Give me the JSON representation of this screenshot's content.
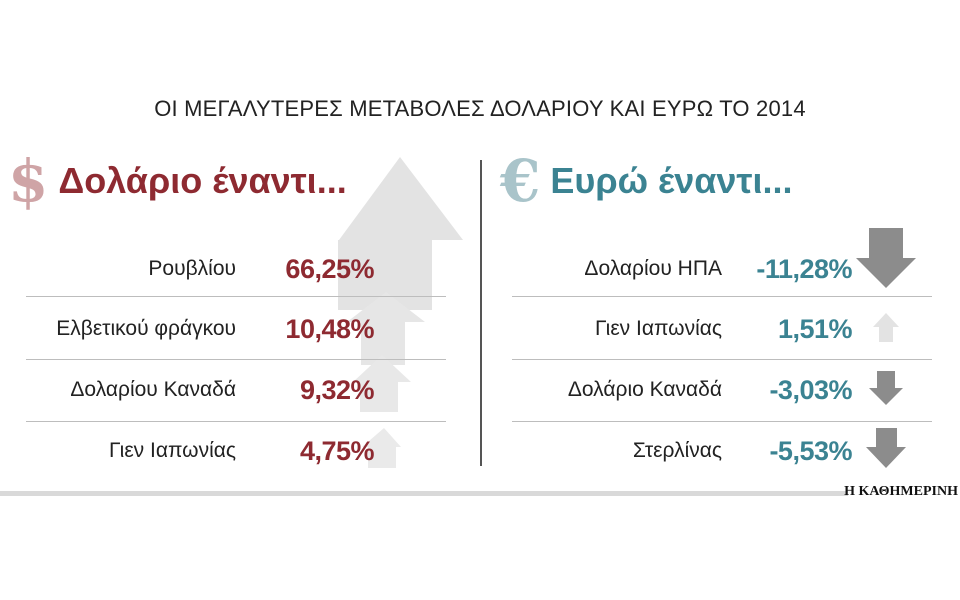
{
  "title": "ΟΙ ΜΕΓΑΛΥΤΕΡΕΣ ΜΕΤΑΒΟΛΕΣ ΔΟΛΑΡΙΟΥ ΚΑΙ ΕΥΡΩ ΤΟ 2014",
  "dollar": {
    "symbol": "$",
    "heading": "Δολάριο έναντι...",
    "rows": [
      {
        "name": "Ρουβλίου",
        "value": "66,25%",
        "direction": "up"
      },
      {
        "name": "Ελβετικού φράγκου",
        "value": "10,48%",
        "direction": "up"
      },
      {
        "name": "Δολαρίου Καναδά",
        "value": "9,32%",
        "direction": "up"
      },
      {
        "name": "Γιεν Ιαπωνίας",
        "value": "4,75%",
        "direction": "up"
      }
    ]
  },
  "euro": {
    "symbol": "€",
    "heading": "Ευρώ έναντι...",
    "rows": [
      {
        "name": "Δολαρίου ΗΠΑ",
        "value": "-11,28%",
        "direction": "down"
      },
      {
        "name": "Γιεν Ιαπωνίας",
        "value": "1,51%",
        "direction": "up"
      },
      {
        "name": "Δολάριο Καναδά",
        "value": "-3,03%",
        "direction": "down"
      },
      {
        "name": "Στερλίνας",
        "value": "-5,53%",
        "direction": "down"
      }
    ]
  },
  "source": "Η ΚΑΘΗΜΕΡΙΝΗ",
  "colors": {
    "dollar_accent": "#8e2a31",
    "dollar_symbol": "#cfa4a6",
    "euro_accent": "#3b8392",
    "euro_symbol": "#a9c4ca",
    "arrow_down": "#8c8c8c",
    "arrow_up": "#e3e3e3"
  },
  "icons": [
    "up-arrow-icon",
    "down-arrow-icon"
  ]
}
